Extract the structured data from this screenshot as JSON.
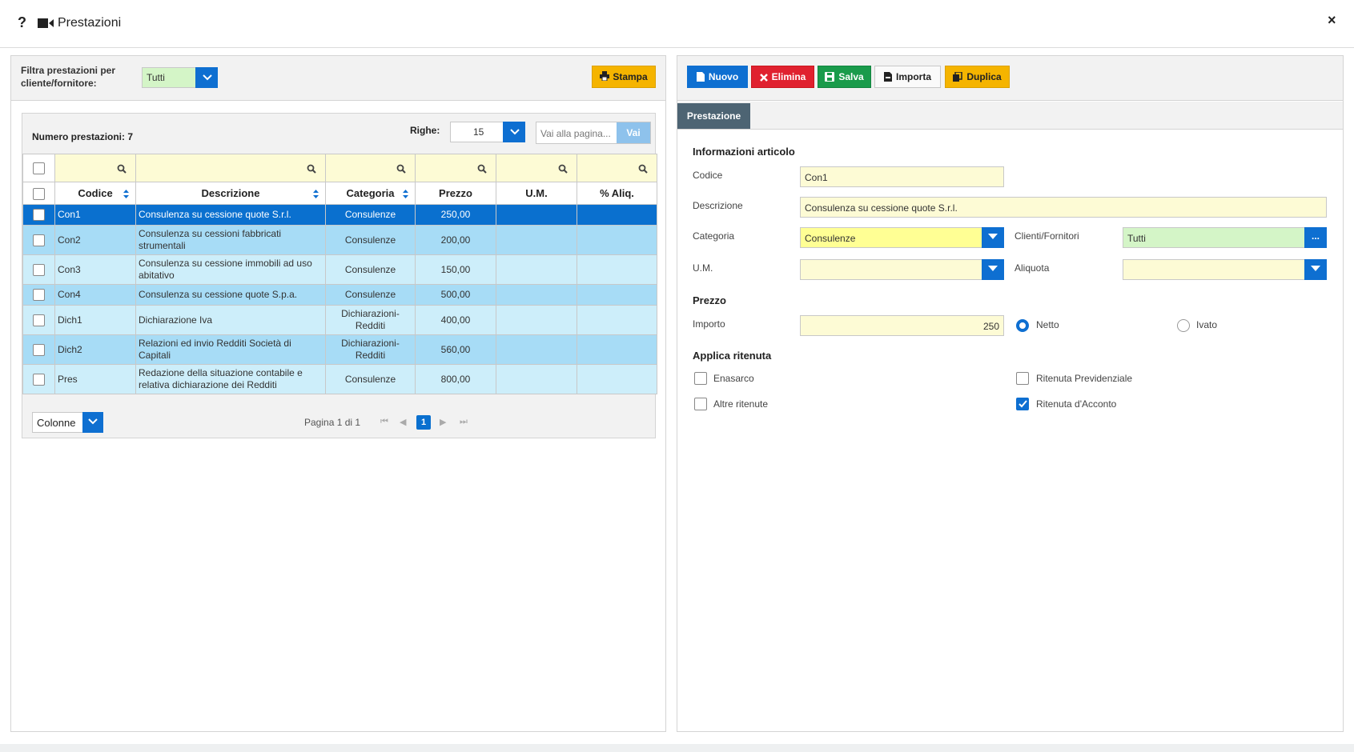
{
  "window": {
    "help": "?",
    "title": "Prestazioni",
    "close": "×"
  },
  "filter": {
    "label": "Filtra prestazioni per cliente/fornitore:",
    "value": "Tutti",
    "print_label": "Stampa"
  },
  "grid": {
    "count_label": "Numero prestazioni: 7",
    "rows_label": "Righe:",
    "rows_value": "15",
    "goto_placeholder": "Vai alla pagina...",
    "goto_button": "Vai",
    "columns": [
      "Codice",
      "Descrizione",
      "Categoria",
      "Prezzo",
      "U.M.",
      "% Aliq."
    ],
    "rows": [
      {
        "codice": "Con1",
        "descrizione": "Consulenza su cessione quote S.r.l.",
        "categoria": "Consulenze",
        "prezzo": "250,00",
        "um": "",
        "aliq": ""
      },
      {
        "codice": "Con2",
        "descrizione": "Consulenza su cessioni fabbricati strumentali",
        "categoria": "Consulenze",
        "prezzo": "200,00",
        "um": "",
        "aliq": ""
      },
      {
        "codice": "Con3",
        "descrizione": "Consulenza su cessione immobili ad uso abitativo",
        "categoria": "Consulenze",
        "prezzo": "150,00",
        "um": "",
        "aliq": ""
      },
      {
        "codice": "Con4",
        "descrizione": "Consulenza su cessione quote S.p.a.",
        "categoria": "Consulenze",
        "prezzo": "500,00",
        "um": "",
        "aliq": ""
      },
      {
        "codice": "Dich1",
        "descrizione": "Dichiarazione Iva",
        "categoria": "Dichiarazioni-Redditi",
        "prezzo": "400,00",
        "um": "",
        "aliq": ""
      },
      {
        "codice": "Dich2",
        "descrizione": "Relazioni ed invio Redditi Società di Capitali",
        "categoria": "Dichiarazioni-Redditi",
        "prezzo": "560,00",
        "um": "",
        "aliq": ""
      },
      {
        "codice": "Pres",
        "descrizione": "Redazione della situazione contabile e relativa dichiarazione dei Redditi",
        "categoria": "Consulenze",
        "prezzo": "800,00",
        "um": "",
        "aliq": ""
      }
    ],
    "columns_button": "Colonne",
    "pager_text": "Pagina 1 di 1",
    "current_page": "1"
  },
  "toolbar": {
    "nuovo": "Nuovo",
    "elimina": "Elimina",
    "salva": "Salva",
    "importa": "Importa",
    "duplica": "Duplica"
  },
  "tab": "Prestazione",
  "form": {
    "section_info": "Informazioni articolo",
    "codice_label": "Codice",
    "codice_value": "Con1",
    "descrizione_label": "Descrizione",
    "descrizione_value": "Consulenza su cessione quote S.r.l.",
    "categoria_label": "Categoria",
    "categoria_value": "Consulenze",
    "clienti_label": "Clienti/Fornitori",
    "clienti_value": "Tutti",
    "clienti_button": "...",
    "um_label": "U.M.",
    "um_value": "",
    "aliquota_label": "Aliquota",
    "aliquota_value": "",
    "section_prezzo": "Prezzo",
    "importo_label": "Importo",
    "importo_value": "250",
    "netto_label": "Netto",
    "ivato_label": "Ivato",
    "price_mode": "Netto",
    "section_ritenuta": "Applica ritenuta",
    "enasarco_label": "Enasarco",
    "enasarco_checked": false,
    "previdenziale_label": "Ritenuta Previdenziale",
    "previdenziale_checked": false,
    "altre_label": "Altre ritenute",
    "altre_checked": false,
    "acconto_label": "Ritenuta d'Acconto",
    "acconto_checked": true
  },
  "colors": {
    "primary": "#0e6fd1",
    "danger": "#e0212f",
    "success": "#1a9b4b",
    "warning": "#f5b400",
    "tab": "#4d6473"
  }
}
